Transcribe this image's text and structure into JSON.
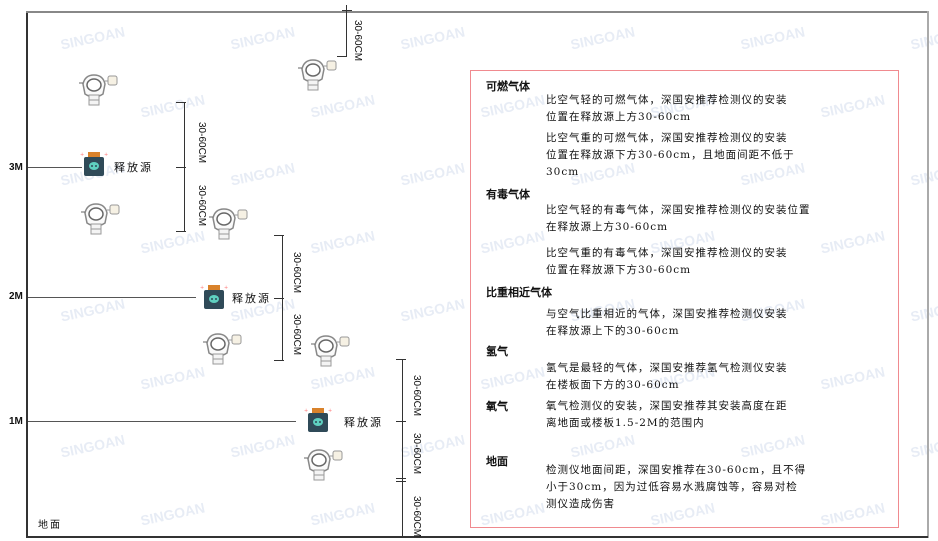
{
  "levels": {
    "m3": "3M",
    "m2": "2M",
    "m1": "1M",
    "ground": "地面"
  },
  "source_label": "释放源",
  "dimension_label": "30-60CM",
  "watermark": "SINGOAN",
  "colors": {
    "frame_border": "#f08a8f",
    "source_body": "#2f4a58",
    "source_cap": "#d9822b",
    "detector": "#888888"
  },
  "notes": [
    {
      "heading": "可燃气体",
      "paragraphs": [
        [
          "比空气轻的可燃气体，深国安推荐检测仪的安装",
          "位置在释放源上方30-60cm"
        ],
        [
          "比空气重的可燃气体，深国安推荐检测仪的安装",
          "位置在释放源下方30-60cm，且地面间距不低于",
          "30cm"
        ]
      ]
    },
    {
      "heading": "有毒气体",
      "paragraphs": [
        [
          "比空气轻的有毒气体，深国安推荐检测仪的安装位置",
          "在释放源上方30-60cm"
        ],
        [
          "比空气重的有毒气体，深国安推荐检测仪的安装",
          "位置在释放源下方30-60cm"
        ]
      ]
    },
    {
      "heading": "比重相近气体",
      "paragraphs": [
        [
          "与空气比重相近的气体，深国安推荐检测仪安装",
          "在释放源上下的30-60cm"
        ]
      ]
    },
    {
      "heading": "氢气",
      "paragraphs": [
        [
          "氢气是最轻的气体，深国安推荐氢气检测仪安装",
          "在楼板面下方的30-60cm"
        ]
      ]
    },
    {
      "heading": "氧气",
      "paragraphs": [
        [
          "氧气检测仪的安装，深国安推荐其安装高度在距",
          "离地面或楼板1.5-2M的范围内"
        ]
      ]
    },
    {
      "heading": "地面",
      "paragraphs": [
        [
          "检测仪地面间距，深国安推荐在30-60cm，且不得",
          "小于30cm，因为过低容易水溅腐蚀等，容易对检",
          "测仪造成伤害"
        ]
      ]
    }
  ]
}
